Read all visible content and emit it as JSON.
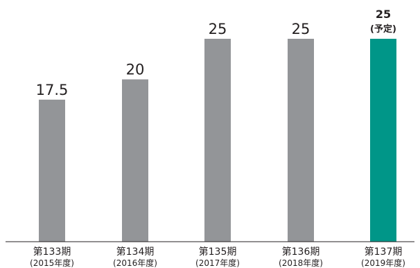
{
  "chart_data": {
    "type": "bar",
    "categories": [
      "第133期",
      "第134期",
      "第135期",
      "第136期",
      "第137期"
    ],
    "sublabels": [
      "(2015年度)",
      "(2016年度)",
      "(2017年度)",
      "(2018年度)",
      "(2019年度)"
    ],
    "values": [
      17.5,
      20,
      25,
      25,
      25
    ],
    "value_labels": [
      "17.5",
      "20",
      "25",
      "25",
      "25"
    ],
    "notes": [
      "",
      "",
      "",
      "",
      "(予定)"
    ],
    "highlight": [
      false,
      false,
      false,
      false,
      true
    ],
    "colors": {
      "default": "#939598",
      "highlight": "#009688",
      "axis": "#231f20"
    },
    "ylim": [
      0,
      25
    ],
    "grid": false,
    "title": "",
    "xlabel": "",
    "ylabel": ""
  }
}
